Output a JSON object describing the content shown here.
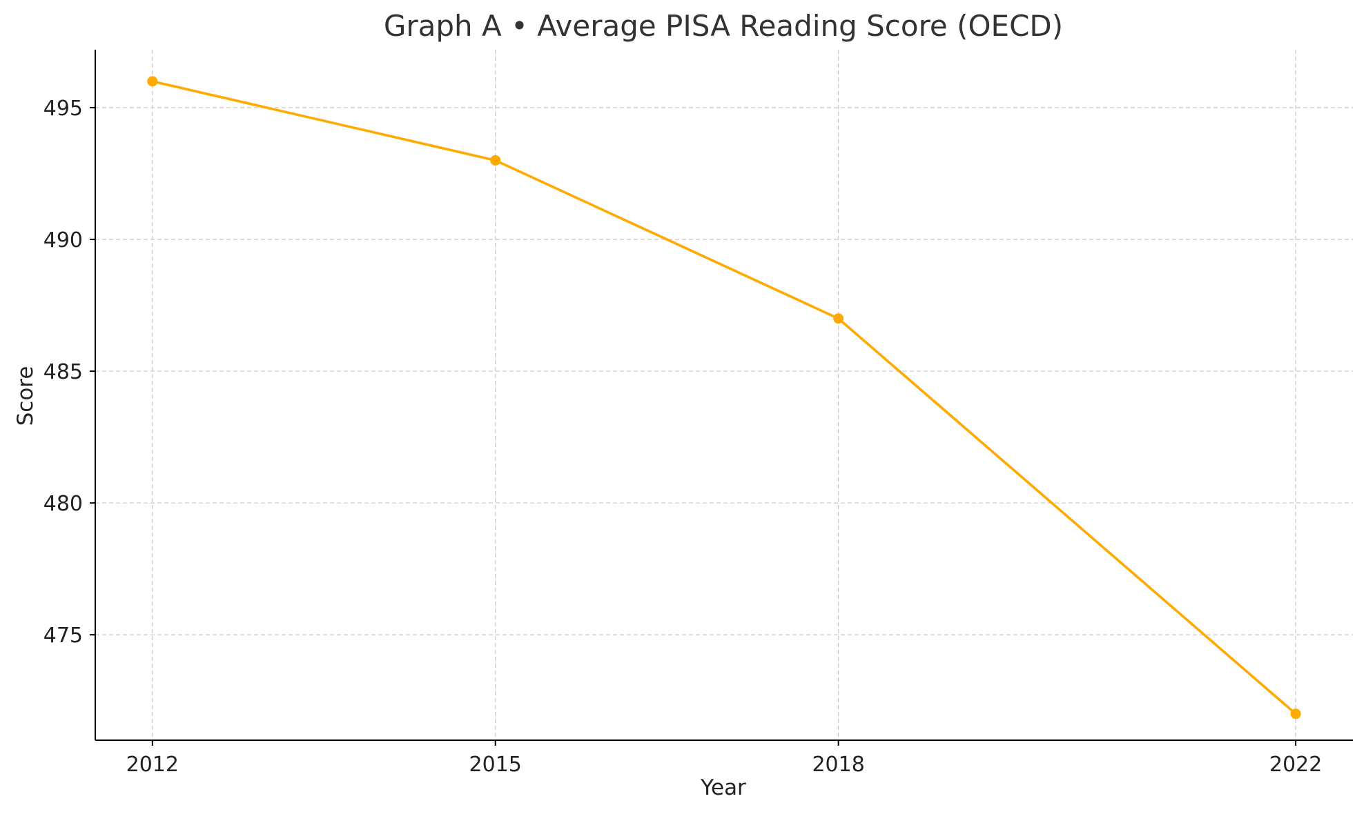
{
  "chart_data": {
    "type": "line",
    "title": "Graph A • Average PISA Reading Score (OECD)",
    "xlabel": "Year",
    "ylabel": "Score",
    "x": [
      2012,
      2015,
      2018,
      2022
    ],
    "series": [
      {
        "values": [
          496,
          493,
          487,
          472
        ],
        "color": "#FFAA00"
      }
    ],
    "xlim": [
      2011.5,
      2022.5
    ],
    "ylim": [
      471,
      497.2
    ],
    "xticks": [
      2012,
      2015,
      2018,
      2022
    ],
    "yticks": [
      475,
      480,
      485,
      490,
      495
    ],
    "grid": true,
    "marker": "circle"
  }
}
